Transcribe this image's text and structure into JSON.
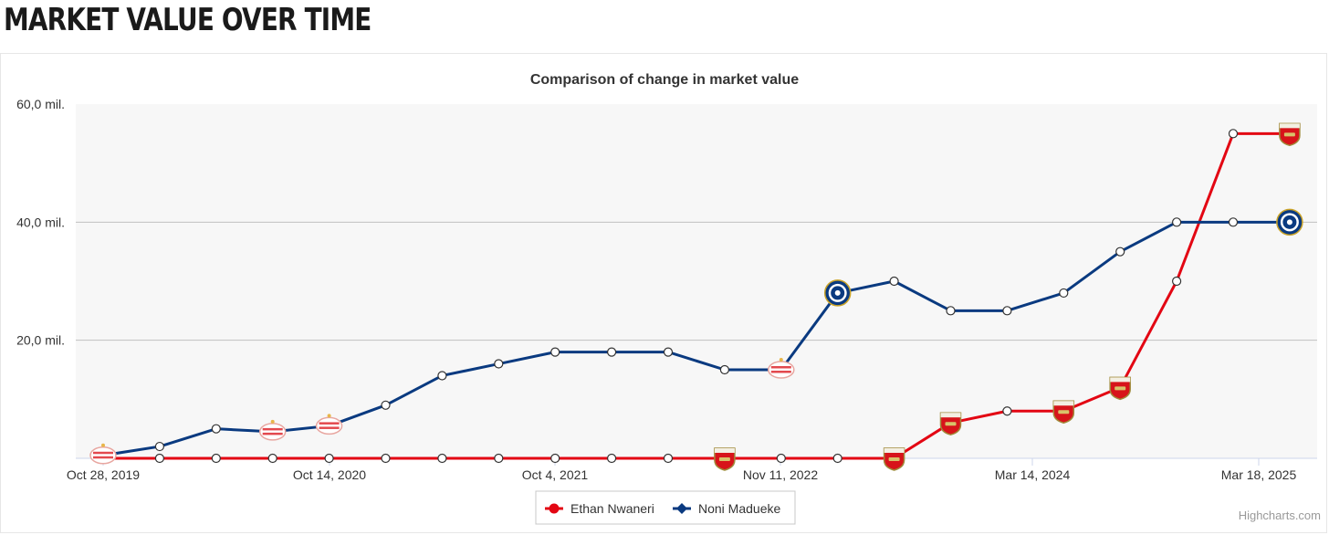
{
  "page": {
    "heading": "MARKET VALUE OVER TIME"
  },
  "chart_data": {
    "type": "line",
    "title": "Comparison of change in market value",
    "credits": "Highcharts.com",
    "x_ticks": [
      "Oct 28, 2019",
      "Oct 14, 2020",
      "Oct 4, 2021",
      "Nov 11, 2022",
      "Mar 14, 2024",
      "Mar 18, 2025"
    ],
    "y_ticks": [
      {
        "value": 20,
        "label": "20,0 mil."
      },
      {
        "value": 40,
        "label": "40,0 mil."
      },
      {
        "value": 60,
        "label": "60,0 mil."
      }
    ],
    "ylim": [
      0,
      60
    ],
    "grid": true,
    "legend_position": "bottom-center",
    "colors": {
      "plot_bg": "#f7f7f7",
      "grid": "#c0c0c0",
      "axis": "#ccd6eb",
      "text": "#333333"
    },
    "series": [
      {
        "name": "Ethan Nwaneri",
        "color": "#e30613",
        "legend_marker": "circle",
        "values": [
          0,
          0,
          0,
          0,
          0,
          0,
          0,
          0,
          0,
          0,
          0,
          0,
          0,
          0,
          0,
          6,
          8,
          8,
          12,
          30,
          55,
          55
        ],
        "club_icons": [
          "",
          "",
          "",
          "",
          "",
          "",
          "",
          "",
          "",
          "",
          "",
          "arsenal",
          "",
          "",
          "arsenal",
          "arsenal",
          "",
          "arsenal",
          "arsenal",
          "",
          "",
          "arsenal"
        ]
      },
      {
        "name": "Noni Madueke",
        "color": "#0a3a80",
        "legend_marker": "diamond",
        "values": [
          0.5,
          2,
          5,
          4.5,
          5.5,
          9,
          14,
          16,
          18,
          18,
          18,
          15,
          15,
          28,
          30,
          25,
          25,
          28,
          35,
          40,
          40,
          40
        ],
        "club_icons": [
          "psv",
          "",
          "",
          "psv",
          "psv",
          "",
          "",
          "",
          "",
          "",
          "",
          "",
          "psv",
          "chelsea",
          "",
          "",
          "",
          "",
          "",
          "",
          "",
          "chelsea"
        ]
      }
    ]
  }
}
